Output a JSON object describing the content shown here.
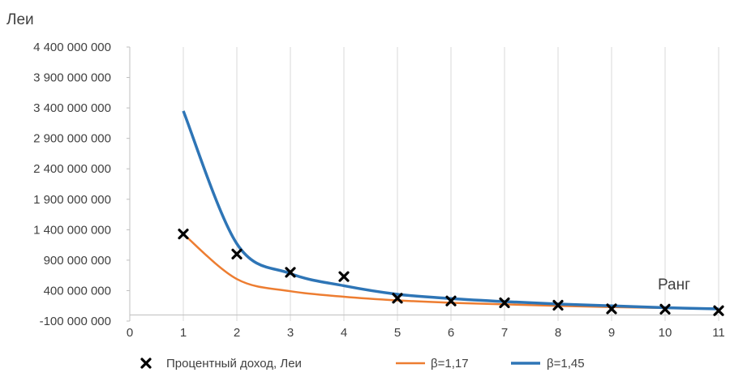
{
  "chart_data": {
    "type": "scatter",
    "title": "",
    "ylabel": "Леи",
    "xlabel": "Ранг",
    "x_ticks": [
      "0",
      "1",
      "2",
      "3",
      "4",
      "5",
      "6",
      "7",
      "8",
      "9",
      "10",
      "11"
    ],
    "y_ticks": [
      "-100 000 000",
      "400 000 000",
      "900 000 000",
      "1 400 000 000",
      "1 900 000 000",
      "2 400 000 000",
      "2 900 000 000",
      "3 400 000 000",
      "3 900 000 000",
      "4 400 000 000"
    ],
    "xlim": [
      0,
      11
    ],
    "ylim": [
      -100000000,
      4400000000
    ],
    "grid": "vertical",
    "legend_position": "bottom",
    "series": [
      {
        "name": "Процентный доход, Леи",
        "kind": "scatter",
        "marker": "x",
        "color": "#000000",
        "x": [
          1,
          2,
          3,
          4,
          5,
          6,
          7,
          8,
          9,
          10,
          11
        ],
        "y": [
          1330000000,
          1000000000,
          700000000,
          630000000,
          275000000,
          230000000,
          200000000,
          160000000,
          100000000,
          95000000,
          70000000
        ]
      },
      {
        "name": "β=1,17",
        "kind": "line",
        "color": "#ed7d31",
        "x": [
          1,
          2,
          3,
          4,
          5,
          6,
          7,
          8,
          9,
          10,
          11
        ],
        "y": [
          1330000000,
          590000000,
          390000000,
          300000000,
          240000000,
          200000000,
          175000000,
          150000000,
          130000000,
          115000000,
          100000000
        ]
      },
      {
        "name": "β=1,45",
        "kind": "line",
        "color": "#2e75b6",
        "x": [
          1,
          2,
          3,
          4,
          5,
          6,
          7,
          8,
          9,
          10,
          11
        ],
        "y": [
          3350000000,
          1170000000,
          680000000,
          480000000,
          340000000,
          270000000,
          220000000,
          180000000,
          150000000,
          120000000,
          100000000
        ]
      }
    ]
  }
}
